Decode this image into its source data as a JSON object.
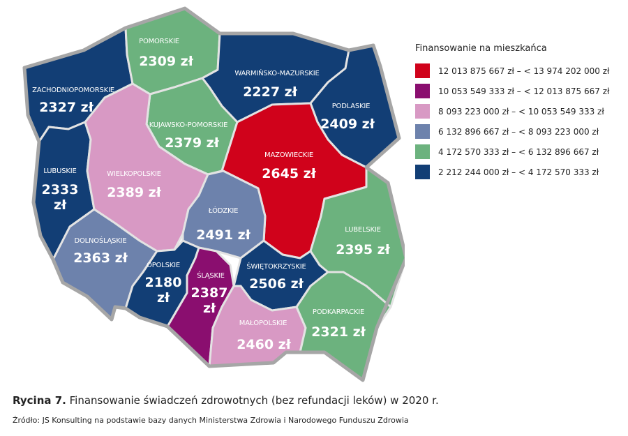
{
  "legend": {
    "title": "Finansowanie na mieszkańca",
    "items": [
      {
        "label": "12 013 875 667 zł – < 13 974 202 000 zł",
        "color": "#d0021b"
      },
      {
        "label": "10 053 549 333 zł – < 12 013 875 667 zł",
        "color": "#8a0e6f"
      },
      {
        "label": "8 093 223 000 zł – < 10 053 549 333 zł",
        "color": "#d899c4"
      },
      {
        "label": "6 132 896 667 zł – < 8 093 223 000 zł",
        "color": "#6d82ac"
      },
      {
        "label": "4 172 570 333 zł – < 6 132 896 667 zł",
        "color": "#6cb27e"
      },
      {
        "label": "2 212 244 000 zł – < 4 172 570 333 zł",
        "color": "#123e75"
      }
    ]
  },
  "regions": [
    {
      "id": "zachodniopomorskie",
      "name": "ZACHODNIOPOMORSKIE",
      "value": "2327 zł",
      "color": "#123e75"
    },
    {
      "id": "pomorskie",
      "name": "POMORSKIE",
      "value": "2309 zł",
      "color": "#6cb27e"
    },
    {
      "id": "warminsko-mazurskie",
      "name": "WARMIŃSKO-MAZURSKIE",
      "value": "2227 zł",
      "color": "#123e75"
    },
    {
      "id": "podlaskie",
      "name": "PODLASKIE",
      "value": "2409 zł",
      "color": "#123e75"
    },
    {
      "id": "kujawsko-pomorskie",
      "name": "KUJAWSKO-POMORSKIE",
      "value": "2379 zł",
      "color": "#6cb27e"
    },
    {
      "id": "lubuskie",
      "name": "LUBUSKIE",
      "value": "2333 zł",
      "value_lines": [
        "2333",
        "zł"
      ],
      "color": "#123e75"
    },
    {
      "id": "wielkopolskie",
      "name": "WIELKOPOLSKIE",
      "value": "2389 zł",
      "color": "#d899c4"
    },
    {
      "id": "mazowieckie",
      "name": "MAZOWIECKIE",
      "value": "2645 zł",
      "color": "#d0021b"
    },
    {
      "id": "lodzkie",
      "name": "ŁÓDZKIE",
      "value": "2491 zł",
      "color": "#6d82ac"
    },
    {
      "id": "lubelskie",
      "name": "LUBELSKIE",
      "value": "2395 zł",
      "color": "#6cb27e"
    },
    {
      "id": "dolnoslaskie",
      "name": "DOLNOŚLĄSKIE",
      "value": "2363 zł",
      "color": "#6d82ac"
    },
    {
      "id": "opolskie",
      "name": "OPOLSKIE",
      "value": "2180 zł",
      "value_lines": [
        "2180",
        "zł"
      ],
      "color": "#123e75"
    },
    {
      "id": "slaskie",
      "name": "ŚLĄSKIE",
      "value": "2387 zł",
      "value_lines": [
        "2387",
        "zł"
      ],
      "color": "#8a0e6f"
    },
    {
      "id": "swietokrzyskie",
      "name": "ŚWIĘTOKRZYSKIE",
      "value": "2506 zł",
      "color": "#123e75"
    },
    {
      "id": "malopolskie",
      "name": "MAŁOPOLSKIE",
      "value": "2460 zł",
      "color": "#d899c4"
    },
    {
      "id": "podkarpackie",
      "name": "PODKARPACKIE",
      "value": "2321 zł",
      "color": "#6cb27e"
    }
  ],
  "caption": {
    "prefix": "Rycina 7.",
    "text": "Finansowanie świadczeń zdrowotnych (bez refundacji leków) w 2020 r."
  },
  "source": "Źródło: JS Konsulting na podstawie bazy danych Ministerstwa Zdrowia i Narodowego Funduszu Zdrowia"
}
